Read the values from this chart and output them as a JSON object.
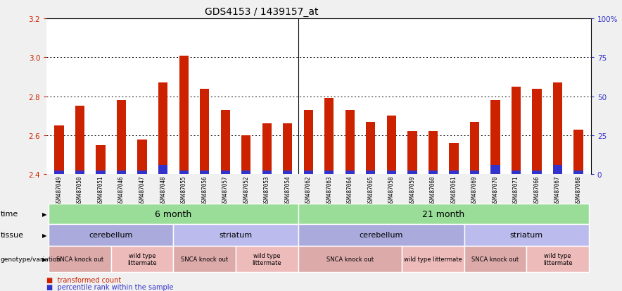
{
  "title": "GDS4153 / 1439157_at",
  "samples": [
    "GSM487049",
    "GSM487050",
    "GSM487051",
    "GSM487046",
    "GSM487047",
    "GSM487048",
    "GSM487055",
    "GSM487056",
    "GSM487057",
    "GSM487052",
    "GSM487053",
    "GSM487054",
    "GSM487062",
    "GSM487063",
    "GSM487064",
    "GSM487065",
    "GSM487058",
    "GSM487059",
    "GSM487060",
    "GSM487061",
    "GSM487069",
    "GSM487070",
    "GSM487071",
    "GSM487066",
    "GSM487067",
    "GSM487068"
  ],
  "red_values": [
    2.65,
    2.75,
    2.55,
    2.78,
    2.58,
    2.87,
    3.01,
    2.84,
    2.73,
    2.6,
    2.66,
    2.66,
    2.73,
    2.79,
    2.73,
    2.67,
    2.7,
    2.62,
    2.62,
    2.56,
    2.67,
    2.78,
    2.85,
    2.84,
    2.87,
    2.63
  ],
  "blue_values": [
    2.42,
    2.42,
    2.42,
    2.42,
    2.42,
    2.45,
    2.42,
    2.42,
    2.42,
    2.42,
    2.42,
    2.42,
    2.42,
    2.42,
    2.42,
    2.42,
    2.42,
    2.42,
    2.42,
    2.42,
    2.42,
    2.45,
    2.42,
    2.42,
    2.45,
    2.42
  ],
  "ymin": 2.4,
  "ymax": 3.2,
  "yticks": [
    2.4,
    2.6,
    2.8,
    3.0,
    3.2
  ],
  "right_yticks": [
    0,
    25,
    50,
    75,
    100
  ],
  "right_ytick_labels": [
    "0",
    "25",
    "50",
    "75",
    "100%"
  ],
  "bar_color": "#cc2200",
  "blue_color": "#3333cc",
  "fig_bg": "#f0f0f0",
  "plot_bg": "#ffffff",
  "time_groups": [
    {
      "label": "6 month",
      "start": 0,
      "end": 12,
      "color": "#99dd99"
    },
    {
      "label": "21 month",
      "start": 12,
      "end": 26,
      "color": "#99dd99"
    }
  ],
  "tissue_groups": [
    {
      "label": "cerebellum",
      "start": 0,
      "end": 6,
      "color": "#aaaadd"
    },
    {
      "label": "striatum",
      "start": 6,
      "end": 12,
      "color": "#bbbbee"
    },
    {
      "label": "cerebellum",
      "start": 12,
      "end": 20,
      "color": "#aaaadd"
    },
    {
      "label": "striatum",
      "start": 20,
      "end": 26,
      "color": "#bbbbee"
    }
  ],
  "geno_groups": [
    {
      "label": "SNCA knock out",
      "start": 0,
      "end": 3
    },
    {
      "label": "wild type\nlittermate",
      "start": 3,
      "end": 6
    },
    {
      "label": "SNCA knock out",
      "start": 6,
      "end": 9
    },
    {
      "label": "wild type\nlittermate",
      "start": 9,
      "end": 12
    },
    {
      "label": "SNCA knock out",
      "start": 12,
      "end": 17
    },
    {
      "label": "wild type littermate",
      "start": 17,
      "end": 20
    },
    {
      "label": "SNCA knock out",
      "start": 20,
      "end": 23
    },
    {
      "label": "wild type\nlittermate",
      "start": 23,
      "end": 26
    }
  ],
  "geno_colors": [
    "#ddaaaa",
    "#eebbbb",
    "#ddaaaa",
    "#eebbbb",
    "#ddaaaa",
    "#eebbbb",
    "#ddaaaa",
    "#eebbbb"
  ]
}
